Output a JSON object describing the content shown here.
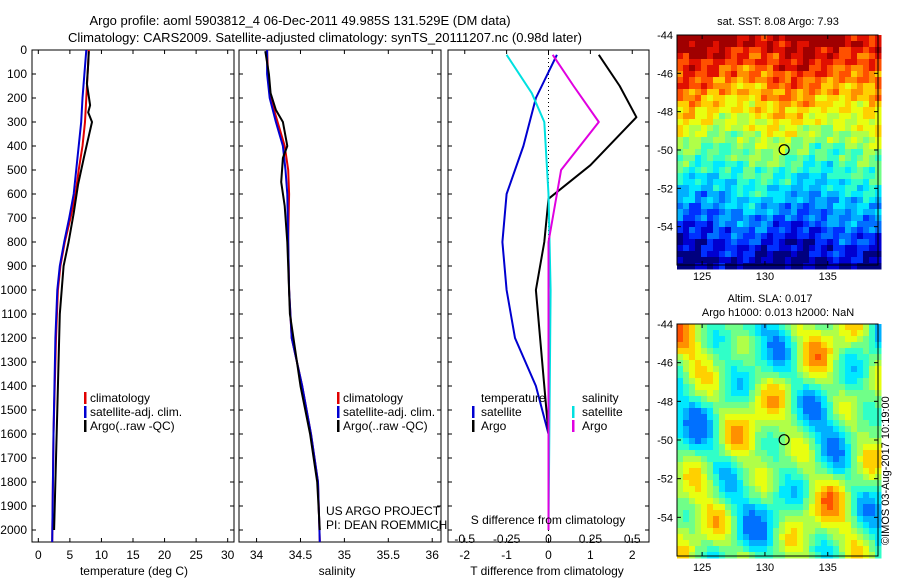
{
  "header": {
    "line1": "Argo profile: aoml 5903812_4 06-Dec-2011 49.985S 131.529E (DM data)",
    "line2": "Climatology: CARS2009. Satellite-adjusted climatology: synTS_20111207.nc (0.98d later)"
  },
  "depth_axis": {
    "ticks": [
      "0",
      "100",
      "200",
      "300",
      "400",
      "500",
      "600",
      "700",
      "800",
      "900",
      "1000",
      "1100",
      "1200",
      "1300",
      "1400",
      "1500",
      "1600",
      "1700",
      "1800",
      "1900",
      "2000"
    ],
    "range": [
      0,
      2050
    ]
  },
  "chart_data": [
    {
      "type": "line",
      "id": "temperature",
      "xlabel": "temperature (deg C)",
      "xlim": [
        -1,
        31
      ],
      "xticks": [
        "0",
        "5",
        "10",
        "15",
        "20",
        "25",
        "30"
      ],
      "ylim": [
        0,
        2050
      ],
      "legend": [
        "climatology",
        "satellite-adj. clim.",
        "Argo(..raw -QC)"
      ],
      "series": [
        {
          "name": "climatology",
          "color": "#e00000",
          "x": [
            8.0,
            7.8,
            7.6,
            7.4,
            7.0,
            6.4,
            5.9,
            5.1,
            4.2,
            3.5,
            3.1,
            2.8,
            2.4,
            2.2
          ],
          "y": [
            0,
            100,
            200,
            300,
            400,
            500,
            600,
            700,
            800,
            900,
            1000,
            1200,
            1600,
            2050
          ]
        },
        {
          "name": "satellite-adj. clim.",
          "color": "#0000d0",
          "x": [
            7.6,
            7.3,
            7.0,
            6.8,
            6.4,
            6.0,
            5.6,
            4.9,
            4.1,
            3.4,
            3.0,
            2.7,
            2.4,
            2.2
          ],
          "y": [
            0,
            100,
            200,
            300,
            400,
            500,
            600,
            700,
            800,
            900,
            1000,
            1200,
            1600,
            2050
          ]
        },
        {
          "name": "Argo(..raw -QC)",
          "color": "#000000",
          "x": [
            8.0,
            7.9,
            7.7,
            8.2,
            7.9,
            8.5,
            7.8,
            7.2,
            6.3,
            5.6,
            4.8,
            4.0,
            3.4,
            3.0,
            2.5
          ],
          "y": [
            5,
            60,
            140,
            230,
            260,
            300,
            380,
            450,
            560,
            680,
            800,
            900,
            1100,
            1500,
            2000
          ]
        }
      ]
    },
    {
      "type": "line",
      "id": "salinity",
      "xlabel": "salinity",
      "xlim": [
        33.8,
        36.1
      ],
      "xticks": [
        "34",
        "34.5",
        "35",
        "35.5",
        "36"
      ],
      "ylim": [
        0,
        2050
      ],
      "legend": [
        "climatology",
        "satellite-adj. clim.",
        "Argo(..raw -QC)"
      ],
      "annotation": [
        "US ARGO PROJECT",
        "PI: DEAN ROEMMICH"
      ],
      "series": [
        {
          "name": "climatology",
          "color": "#e00000",
          "x": [
            34.12,
            34.13,
            34.16,
            34.24,
            34.32,
            34.36,
            34.37,
            34.36,
            34.37,
            34.4,
            34.52,
            34.62,
            34.7,
            34.72
          ],
          "y": [
            0,
            100,
            200,
            300,
            400,
            500,
            600,
            800,
            1000,
            1200,
            1400,
            1600,
            1800,
            2050
          ]
        },
        {
          "name": "satellite-adj. clim.",
          "color": "#0000d0",
          "x": [
            34.12,
            34.12,
            34.15,
            34.22,
            34.3,
            34.33,
            34.35,
            34.36,
            34.37,
            34.4,
            34.52,
            34.62,
            34.7,
            34.72
          ],
          "y": [
            0,
            100,
            200,
            300,
            400,
            500,
            600,
            800,
            1000,
            1200,
            1400,
            1600,
            1800,
            2050
          ]
        },
        {
          "name": "Argo(..raw -QC)",
          "color": "#000000",
          "x": [
            34.1,
            34.14,
            34.16,
            34.22,
            34.3,
            34.35,
            34.3,
            34.28,
            34.32,
            34.35,
            34.36,
            34.38,
            34.5,
            34.61,
            34.69,
            34.72
          ],
          "y": [
            5,
            100,
            180,
            250,
            300,
            400,
            450,
            550,
            650,
            800,
            900,
            1100,
            1400,
            1600,
            1800,
            2000
          ]
        }
      ]
    },
    {
      "type": "line",
      "id": "differences",
      "xlabel_top": "S difference from climatology",
      "xlabel": "T difference from climatology",
      "xlim": [
        -2.4,
        2.4
      ],
      "xticks_T": [
        "-2",
        "-1",
        "0",
        "1",
        "2"
      ],
      "xticks_S": [
        "-0.5",
        "-0.25",
        "0",
        "0.25",
        "0.5"
      ],
      "ylim": [
        0,
        2050
      ],
      "legend_temperature": {
        "title": "temperature",
        "items": [
          "satellite",
          "Argo"
        ]
      },
      "legend_salinity": {
        "title": "salinity",
        "items": [
          "satellite",
          "Argo"
        ]
      },
      "series": [
        {
          "name": "temperature satellite",
          "color": "#0000d0",
          "x": [
            0.2,
            -0.3,
            -0.6,
            -1.0,
            -1.1,
            -1.0,
            -0.8,
            -0.3,
            0.0,
            0.0
          ],
          "y": [
            20,
            200,
            400,
            600,
            800,
            1000,
            1200,
            1400,
            1600,
            2000
          ]
        },
        {
          "name": "temperature Argo",
          "color": "#000000",
          "x": [
            1.2,
            1.7,
            2.1,
            1.0,
            0.0,
            -0.1,
            -0.3,
            -0.1,
            0.0,
            0.0
          ],
          "y": [
            20,
            150,
            280,
            480,
            620,
            800,
            1000,
            1400,
            1600,
            2000
          ]
        },
        {
          "name": "salinity satellite",
          "color": "#00e0e0",
          "x": [
            -1.0,
            -0.4,
            -0.1,
            0.0,
            0.05,
            0.0
          ],
          "y": [
            20,
            180,
            300,
            600,
            1000,
            2000
          ]
        },
        {
          "name": "salinity Argo",
          "color": "#e000e0",
          "x": [
            0.1,
            0.6,
            1.2,
            0.3,
            0.0,
            0.0
          ],
          "y": [
            20,
            150,
            300,
            500,
            800,
            2000
          ]
        }
      ]
    }
  ],
  "sst_map": {
    "title": "sat. SST: 8.08  Argo: 7.93",
    "lon_ticks": [
      "125",
      "130",
      "135"
    ],
    "lat_ticks": [
      "-44",
      "-46",
      "-48",
      "-50",
      "-52",
      "-54"
    ],
    "lon_range": [
      123,
      139
    ],
    "lat_range": [
      -56,
      -44
    ],
    "argo_location": {
      "lon": 131.529,
      "lat": -49.985
    }
  },
  "sla_map": {
    "title_line1": "Altim. SLA: 0.017",
    "title_line2": "Argo h1000: 0.013 h2000: NaN",
    "lon_ticks": [
      "125",
      "130",
      "135"
    ],
    "lat_ticks": [
      "-44",
      "-46",
      "-48",
      "-50",
      "-52",
      "-54"
    ],
    "lon_range": [
      123,
      139
    ],
    "lat_range": [
      -56,
      -44
    ],
    "argo_location": {
      "lon": 131.529,
      "lat": -49.985
    }
  },
  "credit": "©IMOS 03-Aug-2017 10:19:00"
}
